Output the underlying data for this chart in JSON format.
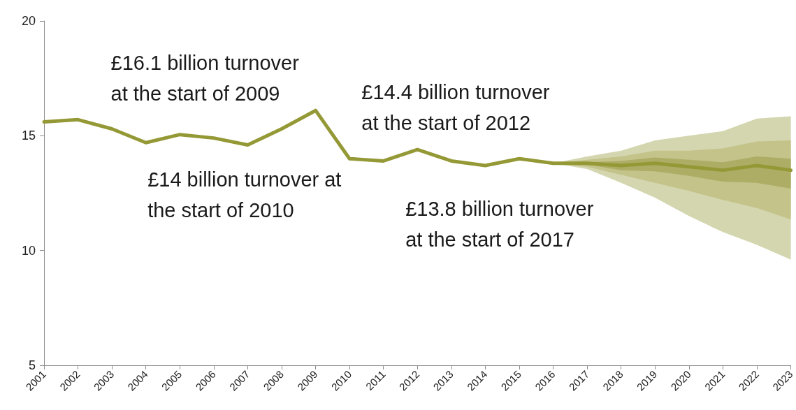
{
  "chart_data": {
    "type": "line",
    "categories": [
      "2001",
      "2002",
      "2003",
      "2004",
      "2005",
      "2006",
      "2007",
      "2008",
      "2009",
      "2010",
      "2011",
      "2012",
      "2013",
      "2014",
      "2015",
      "2016",
      "2017",
      "2018",
      "2019",
      "2020",
      "2021",
      "2022",
      "2023"
    ],
    "series": [
      {
        "color": "#949936",
        "values": [
          15.6,
          15.7,
          15.3,
          14.7,
          15.05,
          14.9,
          14.6,
          15.3,
          16.1,
          14.0,
          13.9,
          14.4,
          13.9,
          13.7,
          14.0,
          13.8,
          13.8,
          13.7,
          13.8,
          13.65,
          13.5,
          13.7,
          13.5
        ],
        "lower": [
          null,
          null,
          null,
          null,
          null,
          null,
          null,
          null,
          null,
          null,
          null,
          null,
          null,
          null,
          null,
          13.8,
          13.55,
          12.95,
          12.3,
          11.5,
          10.8,
          10.25,
          9.6
        ],
        "upper": [
          null,
          null,
          null,
          null,
          null,
          null,
          null,
          null,
          null,
          null,
          null,
          null,
          null,
          null,
          null,
          13.8,
          14.1,
          14.35,
          14.8,
          15.0,
          15.2,
          15.75,
          15.85
        ]
      },
      {
        "color": "#c3c38a",
        "values": [
          null,
          null,
          null,
          null,
          null,
          null,
          null,
          null,
          null,
          null,
          null,
          null,
          null,
          null,
          null,
          null,
          null,
          null,
          null,
          null,
          null,
          null,
          null
        ],
        "lower": [
          null,
          null,
          null,
          null,
          null,
          null,
          null,
          null,
          null,
          null,
          null,
          null,
          null,
          null,
          null,
          13.8,
          13.65,
          13.3,
          12.95,
          12.6,
          12.2,
          11.85,
          11.35
        ],
        "upper": [
          null,
          null,
          null,
          null,
          null,
          null,
          null,
          null,
          null,
          null,
          null,
          null,
          null,
          null,
          null,
          13.8,
          13.95,
          14.1,
          14.35,
          14.35,
          14.45,
          14.75,
          14.8
        ]
      },
      {
        "color": "#adad66",
        "values": [
          null,
          null,
          null,
          null,
          null,
          null,
          null,
          null,
          null,
          null,
          null,
          null,
          null,
          null,
          null,
          null,
          null,
          null,
          null,
          null,
          null,
          null,
          null
        ],
        "lower": [
          null,
          null,
          null,
          null,
          null,
          null,
          null,
          null,
          null,
          null,
          null,
          null,
          null,
          null,
          null,
          13.8,
          13.75,
          13.5,
          13.45,
          13.25,
          13.0,
          12.95,
          12.7
        ],
        "upper": [
          null,
          null,
          null,
          null,
          null,
          null,
          null,
          null,
          null,
          null,
          null,
          null,
          null,
          null,
          null,
          13.8,
          13.85,
          13.9,
          14.05,
          13.95,
          13.85,
          14.1,
          14.0
        ]
      }
    ],
    "ylim": [
      5,
      20
    ],
    "yticks": [
      5,
      10,
      15,
      20
    ],
    "annotations": [
      {
        "text": "£16.1 billion turnover\nat the start of 2009",
        "x": "2009",
        "y": 16.1
      },
      {
        "text": "£14 billion turnover at\nthe start of 2010",
        "x": "2010",
        "y": 14.0
      },
      {
        "text": "£14.4 billion turnover\nat the start of 2012",
        "x": "2012",
        "y": 14.4
      },
      {
        "text": "£13.8 billion turnover\nat the start of 2017",
        "x": "2017",
        "y": 13.8
      }
    ]
  }
}
